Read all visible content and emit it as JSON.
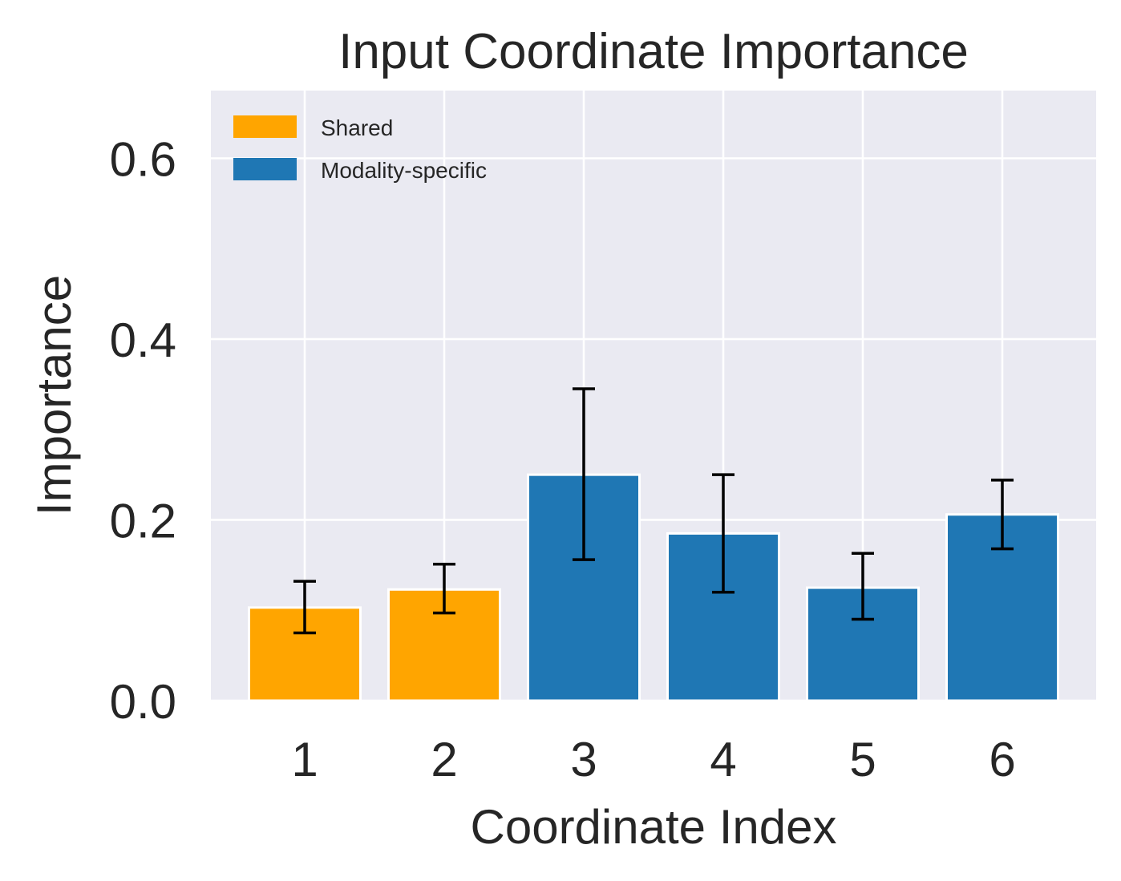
{
  "chart_data": {
    "type": "bar",
    "title": "Input Coordinate Importance",
    "xlabel": "Coordinate Index",
    "ylabel": "Importance",
    "categories": [
      "1",
      "2",
      "3",
      "4",
      "5",
      "6"
    ],
    "values": [
      0.103,
      0.123,
      0.25,
      0.185,
      0.125,
      0.206
    ],
    "error_low": [
      0.075,
      0.097,
      0.156,
      0.12,
      0.09,
      0.168
    ],
    "error_high": [
      0.132,
      0.151,
      0.345,
      0.25,
      0.163,
      0.244
    ],
    "groups": [
      "Shared",
      "Shared",
      "Modality-specific",
      "Modality-specific",
      "Modality-specific",
      "Modality-specific"
    ],
    "ylim": [
      0,
      0.675
    ],
    "yticks": [
      0.0,
      0.2,
      0.4,
      0.6
    ],
    "ytick_labels": [
      "0.0",
      "0.2",
      "0.4",
      "0.6"
    ],
    "grid": true,
    "legend": {
      "placement": "top-left",
      "entries": [
        {
          "label": "Shared",
          "color": "#ffa500"
        },
        {
          "label": "Modality-specific",
          "color": "#1f77b4"
        }
      ]
    },
    "colors": {
      "Shared": "#ffa500",
      "Modality-specific": "#1f77b4",
      "background": "#eaeaf2"
    }
  }
}
